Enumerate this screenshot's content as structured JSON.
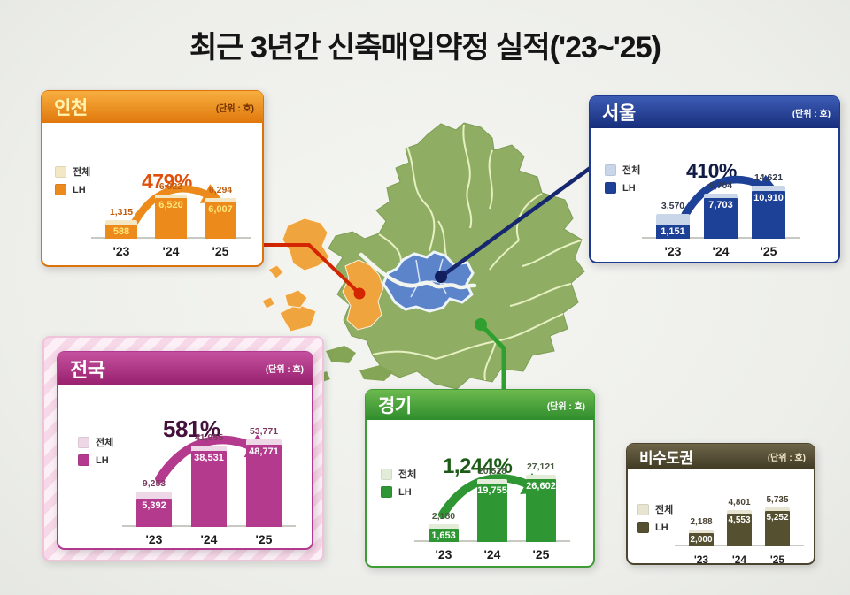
{
  "title": "최근 3년간 신축매입약정 실적('23~'25)",
  "unit_label": "(단위 : 호)",
  "map": {
    "gyeonggi_color": "#8fae63",
    "seoul_color": "#5b84ca",
    "incheon_color": "#f0a43e",
    "district_border_color": "#e7f0c2",
    "river_color": "#f3f6ee",
    "connector_incheon_color": "#d32500",
    "connector_seoul_color": "#16276f",
    "connector_gyeonggi_color": "#2fa02f"
  },
  "chart_data": [
    {
      "type": "bar",
      "id": "incheon",
      "title": "인천",
      "percent_label": "479%",
      "categories": [
        "'23",
        "'24",
        "'25"
      ],
      "series": [
        {
          "name": "전체",
          "values": [
            1315,
            6922,
            6294
          ],
          "labels": [
            "1,315",
            "6,922",
            "6,294"
          ]
        },
        {
          "name": "LH",
          "values": [
            588,
            6520,
            6007
          ],
          "labels": [
            "588",
            "6,520",
            "6,007"
          ]
        }
      ],
      "colors": {
        "border": "#dd720a",
        "header_top": "#f7ae3f",
        "header_bottom": "#e0780c",
        "title": "#fff3b0",
        "unit": "#6e2f00",
        "light": "#f4e7c3",
        "dark": "#ec8a1c",
        "percent": "#e1500a",
        "total_label": "#bf5c0e",
        "lh_label": "#ffe87a"
      }
    },
    {
      "type": "bar",
      "id": "seoul",
      "title": "서울",
      "percent_label": "410%",
      "categories": [
        "'23",
        "'24",
        "'25"
      ],
      "series": [
        {
          "name": "전체",
          "values": [
            3570,
            9704,
            14621
          ],
          "labels": [
            "3,570",
            "9,704",
            "14,621"
          ]
        },
        {
          "name": "LH",
          "values": [
            1151,
            7703,
            10910
          ],
          "labels": [
            "1,151",
            "7,703",
            "10,910"
          ]
        }
      ],
      "colors": {
        "border": "#1d3a90",
        "header_top": "#3c5cb4",
        "header_bottom": "#172e7c",
        "title": "#ffffff",
        "unit": "#ffffff",
        "light": "#c9d6ea",
        "dark": "#1e4198",
        "percent": "#101c44",
        "total_label": "#343b4c",
        "lh_label": "#ffffff"
      }
    },
    {
      "type": "bar",
      "id": "nationwide",
      "title": "전국",
      "percent_label": "581%",
      "categories": [
        "'23",
        "'24",
        "'25"
      ],
      "series": [
        {
          "name": "전체",
          "values": [
            9253,
            41955,
            53771
          ],
          "labels": [
            "9,253",
            "41,955",
            "53,771"
          ]
        },
        {
          "name": "LH",
          "values": [
            5392,
            38531,
            48771
          ],
          "labels": [
            "5,392",
            "38,531",
            "48,771"
          ]
        }
      ],
      "colors": {
        "border": "#b23890",
        "header_top": "#c4519f",
        "header_bottom": "#99216f",
        "title": "#ffffff",
        "unit": "#ffffff",
        "light": "#eed7e7",
        "dark": "#b43a8e",
        "percent": "#45103a",
        "total_label": "#7c3a60",
        "lh_label": "#ffffff"
      }
    },
    {
      "type": "bar",
      "id": "gyeonggi",
      "title": "경기",
      "percent_label": "1,244%",
      "categories": [
        "'23",
        "'24",
        "'25"
      ],
      "series": [
        {
          "name": "전체",
          "values": [
            2180,
            20528,
            27121
          ],
          "labels": [
            "2,180",
            "20,528",
            "27,121"
          ]
        },
        {
          "name": "LH",
          "values": [
            1653,
            19755,
            26602
          ],
          "labels": [
            "1,653",
            "19,755",
            "26,602"
          ]
        }
      ],
      "colors": {
        "border": "#3f9b35",
        "header_top": "#6cb94e",
        "header_bottom": "#2f8d2d",
        "title": "#ffffff",
        "unit": "#ffffff",
        "light": "#e3ecd9",
        "dark": "#2f9634",
        "percent": "#1c5c17",
        "total_label": "#4a5a42",
        "lh_label": "#ffffff"
      }
    },
    {
      "type": "bar",
      "id": "nonmetro",
      "title": "비수도권",
      "percent_label": "",
      "categories": [
        "'23",
        "'24",
        "'25"
      ],
      "series": [
        {
          "name": "전체",
          "values": [
            2188,
            4801,
            5735
          ],
          "labels": [
            "2,188",
            "4,801",
            "5,735"
          ]
        },
        {
          "name": "LH",
          "values": [
            2000,
            4553,
            5252
          ],
          "labels": [
            "2,000",
            "4,553",
            "5,252"
          ]
        }
      ],
      "colors": {
        "border": "#4b452f",
        "header_top": "#6e6549",
        "header_bottom": "#403a24",
        "title": "#ffffff",
        "unit": "#f0e6c8",
        "light": "#e8e4d2",
        "dark": "#55502f",
        "percent": "#3a3522",
        "total_label": "#4a4433",
        "lh_label": "#ffffff"
      }
    }
  ]
}
